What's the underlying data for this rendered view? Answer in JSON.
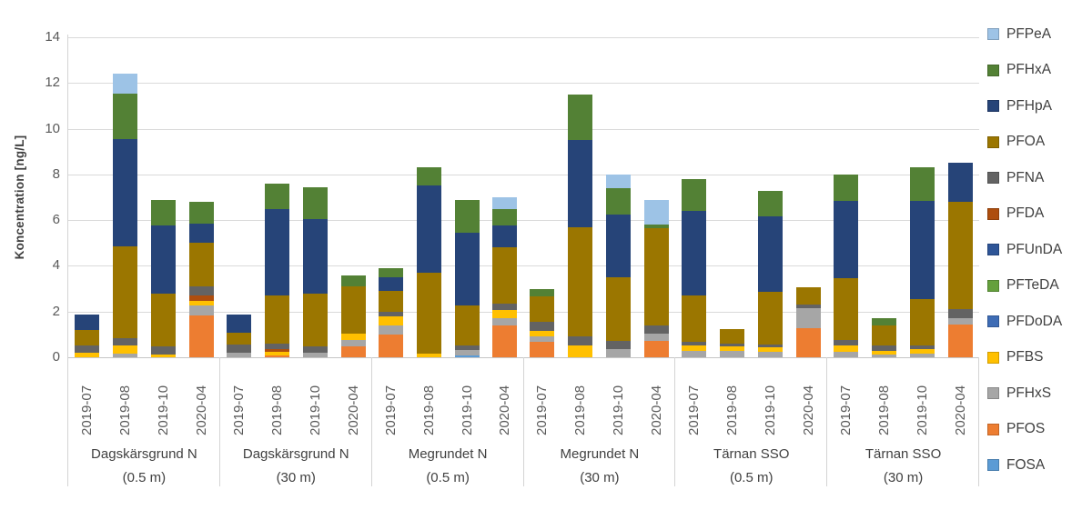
{
  "chart_data": {
    "type": "bar",
    "stacked": true,
    "title": "",
    "ylabel": "Koncentration [ng/L]",
    "ylim": [
      0,
      14
    ],
    "yticks": [
      0,
      2,
      4,
      6,
      8,
      10,
      12,
      14
    ],
    "grid": true,
    "legend_position": "right",
    "legend": [
      {
        "name": "PFPeA",
        "color": "#9DC3E6"
      },
      {
        "name": "PFHxA",
        "color": "#538135"
      },
      {
        "name": "PFHpA",
        "color": "#264478"
      },
      {
        "name": "PFOA",
        "color": "#9B7600"
      },
      {
        "name": "PFNA",
        "color": "#636363"
      },
      {
        "name": "PFDA",
        "color": "#AE4E0E"
      },
      {
        "name": "PFUnDA",
        "color": "#2E5597"
      },
      {
        "name": "PFTeDA",
        "color": "#65A03D"
      },
      {
        "name": "PFDoDA",
        "color": "#3E6CB5"
      },
      {
        "name": "PFBS",
        "color": "#FFC000"
      },
      {
        "name": "PFHxS",
        "color": "#A6A6A6"
      },
      {
        "name": "PFOS",
        "color": "#ED7D31"
      },
      {
        "name": "FOSA",
        "color": "#5B9BD5"
      }
    ],
    "groups": [
      {
        "label": "Dagskärsgrund N",
        "depth": "(0.5 m)",
        "bars": [
          {
            "x": "2019-07",
            "segments": [
              [
                "PFBS",
                0.2
              ],
              [
                "PFNA",
                0.33
              ],
              [
                "PFOA",
                0.67
              ],
              [
                "PFHpA",
                0.66
              ]
            ]
          },
          {
            "x": "2019-08",
            "segments": [
              [
                "PFHxS",
                0.15
              ],
              [
                "PFBS",
                0.35
              ],
              [
                "PFNA",
                0.35
              ],
              [
                "PFOA",
                4.0
              ],
              [
                "PFHpA",
                4.7
              ],
              [
                "PFHxA",
                2.0
              ],
              [
                "PFPeA",
                0.85
              ]
            ]
          },
          {
            "x": "2019-10",
            "segments": [
              [
                "PFBS",
                0.13
              ],
              [
                "PFNA",
                0.33
              ],
              [
                "PFOA",
                2.34
              ],
              [
                "PFHpA",
                2.95
              ],
              [
                "PFHxA",
                1.15
              ]
            ]
          },
          {
            "x": "2020-04",
            "segments": [
              [
                "PFOS",
                1.85
              ],
              [
                "PFHxS",
                0.4
              ],
              [
                "PFBS",
                0.2
              ],
              [
                "PFDA",
                0.25
              ],
              [
                "PFNA",
                0.4
              ],
              [
                "PFOA",
                1.9
              ],
              [
                "PFHpA",
                0.85
              ],
              [
                "PFHxA",
                0.95
              ]
            ]
          }
        ]
      },
      {
        "label": "Dagskärsgrund N",
        "depth": "(30 m)",
        "bars": [
          {
            "x": "2019-07",
            "segments": [
              [
                "PFHxS",
                0.2
              ],
              [
                "PFNA",
                0.36
              ],
              [
                "PFOA",
                0.5
              ],
              [
                "PFHpA",
                0.8
              ]
            ]
          },
          {
            "x": "2019-08",
            "segments": [
              [
                "PFOS",
                0.07
              ],
              [
                "PFBS",
                0.17
              ],
              [
                "PFDA",
                0.13
              ],
              [
                "PFNA",
                0.23
              ],
              [
                "PFOA",
                2.1
              ],
              [
                "PFHpA",
                3.8
              ],
              [
                "PFHxA",
                1.1
              ]
            ]
          },
          {
            "x": "2019-10",
            "segments": [
              [
                "PFHxS",
                0.2
              ],
              [
                "PFNA",
                0.26
              ],
              [
                "PFOA",
                2.34
              ],
              [
                "PFHpA",
                3.25
              ],
              [
                "PFHxA",
                1.4
              ]
            ]
          },
          {
            "x": "2020-04",
            "segments": [
              [
                "PFOS",
                0.46
              ],
              [
                "PFHxS",
                0.31
              ],
              [
                "PFBS",
                0.28
              ],
              [
                "PFOA",
                2.05
              ],
              [
                "PFHxA",
                0.5
              ]
            ]
          }
        ]
      },
      {
        "label": "Megrundet N",
        "depth": "(0.5 m)",
        "bars": [
          {
            "x": "2019-07",
            "segments": [
              [
                "PFOS",
                1.0
              ],
              [
                "PFHxS",
                0.4
              ],
              [
                "PFBS",
                0.4
              ],
              [
                "PFNA",
                0.2
              ],
              [
                "PFOA",
                0.9
              ],
              [
                "PFHpA",
                0.6
              ],
              [
                "PFHxA",
                0.4
              ]
            ]
          },
          {
            "x": "2019-08",
            "segments": [
              [
                "PFBS",
                0.15
              ],
              [
                "PFOA",
                3.55
              ],
              [
                "PFHpA",
                3.8
              ],
              [
                "PFHxA",
                0.8
              ]
            ]
          },
          {
            "x": "2019-10",
            "segments": [
              [
                "FOSA",
                0.07
              ],
              [
                "PFHxS",
                0.26
              ],
              [
                "PFNA",
                0.17
              ],
              [
                "PFOA",
                1.75
              ],
              [
                "PFHpA",
                3.2
              ],
              [
                "PFHxA",
                1.45
              ]
            ]
          },
          {
            "x": "2020-04",
            "segments": [
              [
                "PFOS",
                1.4
              ],
              [
                "PFHxS",
                0.3
              ],
              [
                "PFBS",
                0.35
              ],
              [
                "PFNA",
                0.3
              ],
              [
                "PFOA",
                2.45
              ],
              [
                "PFHpA",
                0.95
              ],
              [
                "PFHxA",
                0.75
              ],
              [
                "PFPeA",
                0.5
              ]
            ]
          }
        ]
      },
      {
        "label": "Megrundet N",
        "depth": "(30 m)",
        "bars": [
          {
            "x": "2019-07",
            "segments": [
              [
                "PFOS",
                0.67
              ],
              [
                "PFHxS",
                0.26
              ],
              [
                "PFBS",
                0.22
              ],
              [
                "PFNA",
                0.4
              ],
              [
                "PFOA",
                1.1
              ],
              [
                "PFHxA",
                0.35
              ]
            ]
          },
          {
            "x": "2019-08",
            "segments": [
              [
                "PFBS",
                0.5
              ],
              [
                "PFNA",
                0.4
              ],
              [
                "PFOA",
                4.8
              ],
              [
                "PFHpA",
                3.8
              ],
              [
                "PFHxA",
                2.0
              ]
            ]
          },
          {
            "x": "2019-10",
            "segments": [
              [
                "PFHxS",
                0.37
              ],
              [
                "PFNA",
                0.33
              ],
              [
                "PFOA",
                2.8
              ],
              [
                "PFHpA",
                2.75
              ],
              [
                "PFHxA",
                1.15
              ],
              [
                "PFPeA",
                0.6
              ]
            ]
          },
          {
            "x": "2020-04",
            "segments": [
              [
                "PFOS",
                0.73
              ],
              [
                "PFHxS",
                0.32
              ],
              [
                "PFNA",
                0.35
              ],
              [
                "PFOA",
                4.25
              ],
              [
                "PFHxA",
                0.15
              ],
              [
                "PFPeA",
                1.1
              ]
            ]
          }
        ]
      },
      {
        "label": "Tärnan SSO",
        "depth": "(0.5 m)",
        "bars": [
          {
            "x": "2019-07",
            "segments": [
              [
                "PFHxS",
                0.29
              ],
              [
                "PFBS",
                0.24
              ],
              [
                "PFNA",
                0.13
              ],
              [
                "PFOA",
                2.04
              ],
              [
                "PFHpA",
                3.7
              ],
              [
                "PFHxA",
                1.4
              ]
            ]
          },
          {
            "x": "2019-08",
            "segments": [
              [
                "PFHxS",
                0.27
              ],
              [
                "PFBS",
                0.2
              ],
              [
                "PFNA",
                0.13
              ],
              [
                "PFOA",
                0.65
              ]
            ]
          },
          {
            "x": "2019-10",
            "segments": [
              [
                "PFHxS",
                0.24
              ],
              [
                "PFBS",
                0.18
              ],
              [
                "PFNA",
                0.15
              ],
              [
                "PFOA",
                2.28
              ],
              [
                "PFHpA",
                3.3
              ],
              [
                "PFHxA",
                1.15
              ]
            ]
          },
          {
            "x": "2020-04",
            "segments": [
              [
                "PFOS",
                1.26
              ],
              [
                "PFHxS",
                0.89
              ],
              [
                "PFNA",
                0.17
              ],
              [
                "PFOA",
                0.73
              ]
            ]
          }
        ]
      },
      {
        "label": "Tärnan SSO",
        "depth": "(30 m)",
        "bars": [
          {
            "x": "2019-07",
            "segments": [
              [
                "PFHxS",
                0.24
              ],
              [
                "PFBS",
                0.26
              ],
              [
                "PFNA",
                0.27
              ],
              [
                "PFOA",
                2.68
              ],
              [
                "PFHpA",
                3.4
              ],
              [
                "PFHxA",
                1.15
              ]
            ]
          },
          {
            "x": "2019-08",
            "segments": [
              [
                "PFHxS",
                0.13
              ],
              [
                "PFBS",
                0.16
              ],
              [
                "PFNA",
                0.21
              ],
              [
                "PFOA",
                0.9
              ],
              [
                "PFHxA",
                0.3
              ]
            ]
          },
          {
            "x": "2019-10",
            "segments": [
              [
                "PFHxS",
                0.17
              ],
              [
                "PFBS",
                0.2
              ],
              [
                "PFNA",
                0.16
              ],
              [
                "PFOA",
                2.02
              ],
              [
                "PFHpA",
                4.3
              ],
              [
                "PFHxA",
                1.45
              ]
            ]
          },
          {
            "x": "2020-04",
            "segments": [
              [
                "PFOS",
                1.43
              ],
              [
                "PFHxS",
                0.27
              ],
              [
                "PFNA",
                0.4
              ],
              [
                "PFOA",
                4.7
              ],
              [
                "PFHpA",
                1.7
              ]
            ]
          }
        ]
      }
    ]
  }
}
